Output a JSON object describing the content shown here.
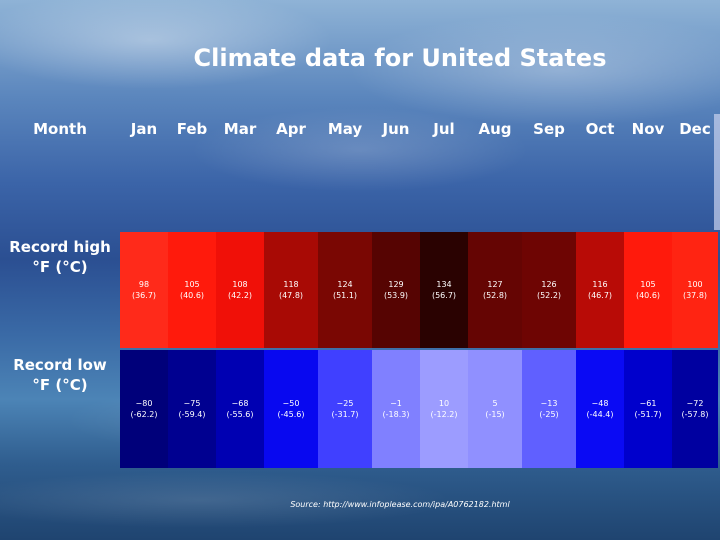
{
  "title": "Climate data for United States",
  "header": {
    "month_label": "Month",
    "months": [
      "Jan",
      "Feb",
      "Mar",
      "Apr",
      "May",
      "Jun",
      "Jul",
      "Aug",
      "Sep",
      "Oct",
      "Nov",
      "Dec"
    ]
  },
  "rows": {
    "record_high": {
      "label_line1": "Record high",
      "label_line2": "°F (°C)",
      "values": [
        {
          "f": "98",
          "c": "(36.7)",
          "color": "#ff2a1a"
        },
        {
          "f": "105",
          "c": "(40.6)",
          "color": "#ff1a0c"
        },
        {
          "f": "108",
          "c": "(42.2)",
          "color": "#f01008"
        },
        {
          "f": "118",
          "c": "(47.8)",
          "color": "#a80a05"
        },
        {
          "f": "124",
          "c": "(51.1)",
          "color": "#7a0703"
        },
        {
          "f": "129",
          "c": "(53.9)",
          "color": "#560402"
        },
        {
          "f": "134",
          "c": "(56.7)",
          "color": "#2a0201"
        },
        {
          "f": "127",
          "c": "(52.8)",
          "color": "#650503"
        },
        {
          "f": "126",
          "c": "(52.2)",
          "color": "#6e0503"
        },
        {
          "f": "116",
          "c": "(46.7)",
          "color": "#b80b06"
        },
        {
          "f": "105",
          "c": "(40.6)",
          "color": "#ff1a0c"
        },
        {
          "f": "100",
          "c": "(37.8)",
          "color": "#ff2412"
        }
      ]
    },
    "record_low": {
      "label_line1": "Record low",
      "label_line2": "°F (°C)",
      "values": [
        {
          "f": "−80",
          "c": "(-62.2)",
          "color": "#00007a"
        },
        {
          "f": "−75",
          "c": "(-59.4)",
          "color": "#000090"
        },
        {
          "f": "−68",
          "c": "(-55.6)",
          "color": "#0000b2"
        },
        {
          "f": "−50",
          "c": "(-45.6)",
          "color": "#0808f0"
        },
        {
          "f": "−25",
          "c": "(-31.7)",
          "color": "#4040ff"
        },
        {
          "f": "−1",
          "c": "(-18.3)",
          "color": "#8080ff"
        },
        {
          "f": "10",
          "c": "(-12.2)",
          "color": "#9c9cff"
        },
        {
          "f": "5",
          "c": "(-15)",
          "color": "#9090ff"
        },
        {
          "f": "−13",
          "c": "(-25)",
          "color": "#6060ff"
        },
        {
          "f": "−48",
          "c": "(-44.4)",
          "color": "#0a0af4"
        },
        {
          "f": "−61",
          "c": "(-51.7)",
          "color": "#0000cc"
        },
        {
          "f": "−72",
          "c": "(-57.8)",
          "color": "#0000a0"
        }
      ]
    }
  },
  "source": "Source: http://www.infoplease.com/ipa/A0762182.html"
}
